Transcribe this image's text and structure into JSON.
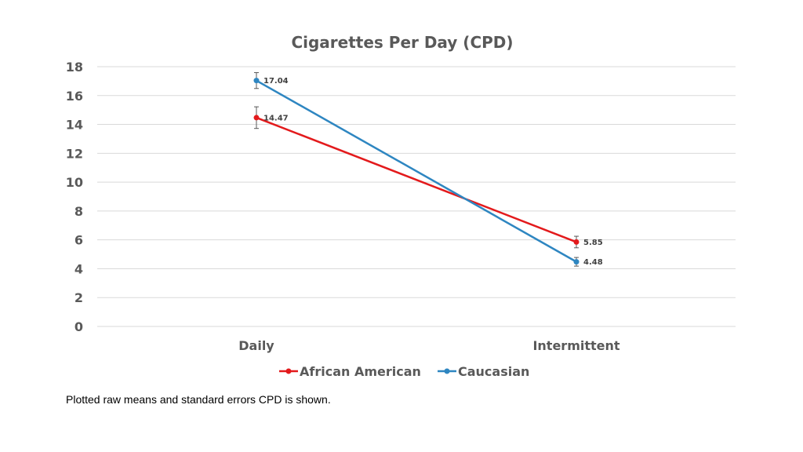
{
  "chart_data": {
    "type": "line",
    "title": "Cigarettes Per Day (CPD)",
    "categories": [
      "Daily",
      "Intermittent"
    ],
    "ylim": [
      0,
      18
    ],
    "yticks": [
      0,
      2,
      4,
      6,
      8,
      10,
      12,
      14,
      16,
      18
    ],
    "ytick_labels": [
      "0",
      "2",
      "4",
      "6",
      "8",
      "10",
      "12",
      "14",
      "16",
      "18"
    ],
    "grid": true,
    "legend_position": "bottom",
    "series": [
      {
        "name": "African American",
        "color": "#e31a1c",
        "values": [
          14.47,
          5.85
        ],
        "value_labels": [
          "14.47",
          "5.85"
        ],
        "errors": [
          0.75,
          0.4
        ]
      },
      {
        "name": "Caucasian",
        "color": "#2e86c1",
        "values": [
          17.04,
          4.48
        ],
        "value_labels": [
          "17.04",
          "4.48"
        ],
        "errors": [
          0.55,
          0.3
        ]
      }
    ]
  },
  "footnote": "Plotted raw means and standard errors CPD is shown."
}
